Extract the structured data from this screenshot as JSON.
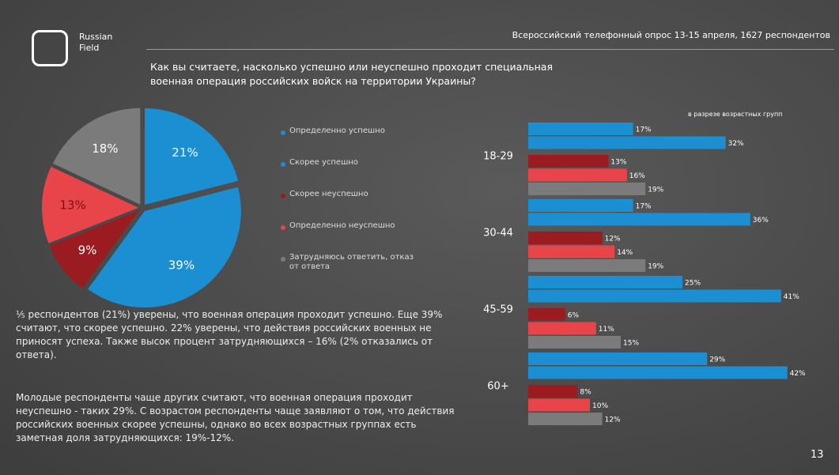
{
  "logo": "Russian Field",
  "header": "Всероссийский телефонный опрос 13-15 апреля, 1627 респондентов",
  "question": "Как вы считаете, насколько успешно или неуспешно проходит специальная военная операция российских войск на территории Украины?",
  "paragraphs": [
    "⅕ респондентов (21%) уверены, что военная операция проходит успешно. Еще 39% считают, что скорее успешно. 22% уверены, что действия российских военных не приносят успеха. Также высок процент затрудняющихся – 16% (2% отказались от ответа).",
    "Молодые респонденты чаще других считают, что военная операция проходит неуспешно - таких 29%. С возрастом респонденты чаще заявляют о том, что действия российских военных скорее успешны, однако во всех возрастных группах есть заметная доля затрудняющихся: 19%-12%."
  ],
  "page_number": "13",
  "chart_data": [
    {
      "type": "pie",
      "categories": [
        "Определенно успешно",
        "Скорее успешно",
        "Скорее неуспешно",
        "Определенно неуспешно",
        "Затрудняюсь ответить, отказ от ответа"
      ],
      "values": [
        21,
        39,
        9,
        13,
        18
      ],
      "value_labels": [
        "21%",
        "39%",
        "9%",
        "13%",
        "18%"
      ],
      "colors": [
        "#1b8fd2",
        "#1b8fd2",
        "#9a1c20",
        "#e8454a",
        "#7b7b7b"
      ]
    },
    {
      "type": "hbar",
      "subtitle": "в разрезе возрастных групп",
      "categories": [
        "18-29",
        "30-44",
        "45-59",
        "60+"
      ],
      "series": [
        {
          "color": "#1b8fd2",
          "values": [
            17,
            17,
            25,
            29
          ],
          "value_labels": [
            "17%",
            "17%",
            "25%",
            "29%"
          ]
        },
        {
          "color": "#1b8fd2",
          "values": [
            32,
            36,
            41,
            42
          ],
          "value_labels": [
            "32%",
            "36%",
            "41%",
            "42%"
          ]
        },
        {
          "color": "#9a1c20",
          "values": [
            13,
            12,
            6,
            8
          ],
          "value_labels": [
            "13%",
            "12%",
            "6%",
            "8%"
          ]
        },
        {
          "color": "#e8454a",
          "values": [
            16,
            14,
            11,
            10
          ],
          "value_labels": [
            "16%",
            "14%",
            "11%",
            "10%"
          ]
        },
        {
          "color": "#7b7b7b",
          "values": [
            19,
            19,
            15,
            12
          ],
          "value_labels": [
            "19%",
            "19%",
            "15%",
            "12%"
          ]
        }
      ]
    }
  ]
}
